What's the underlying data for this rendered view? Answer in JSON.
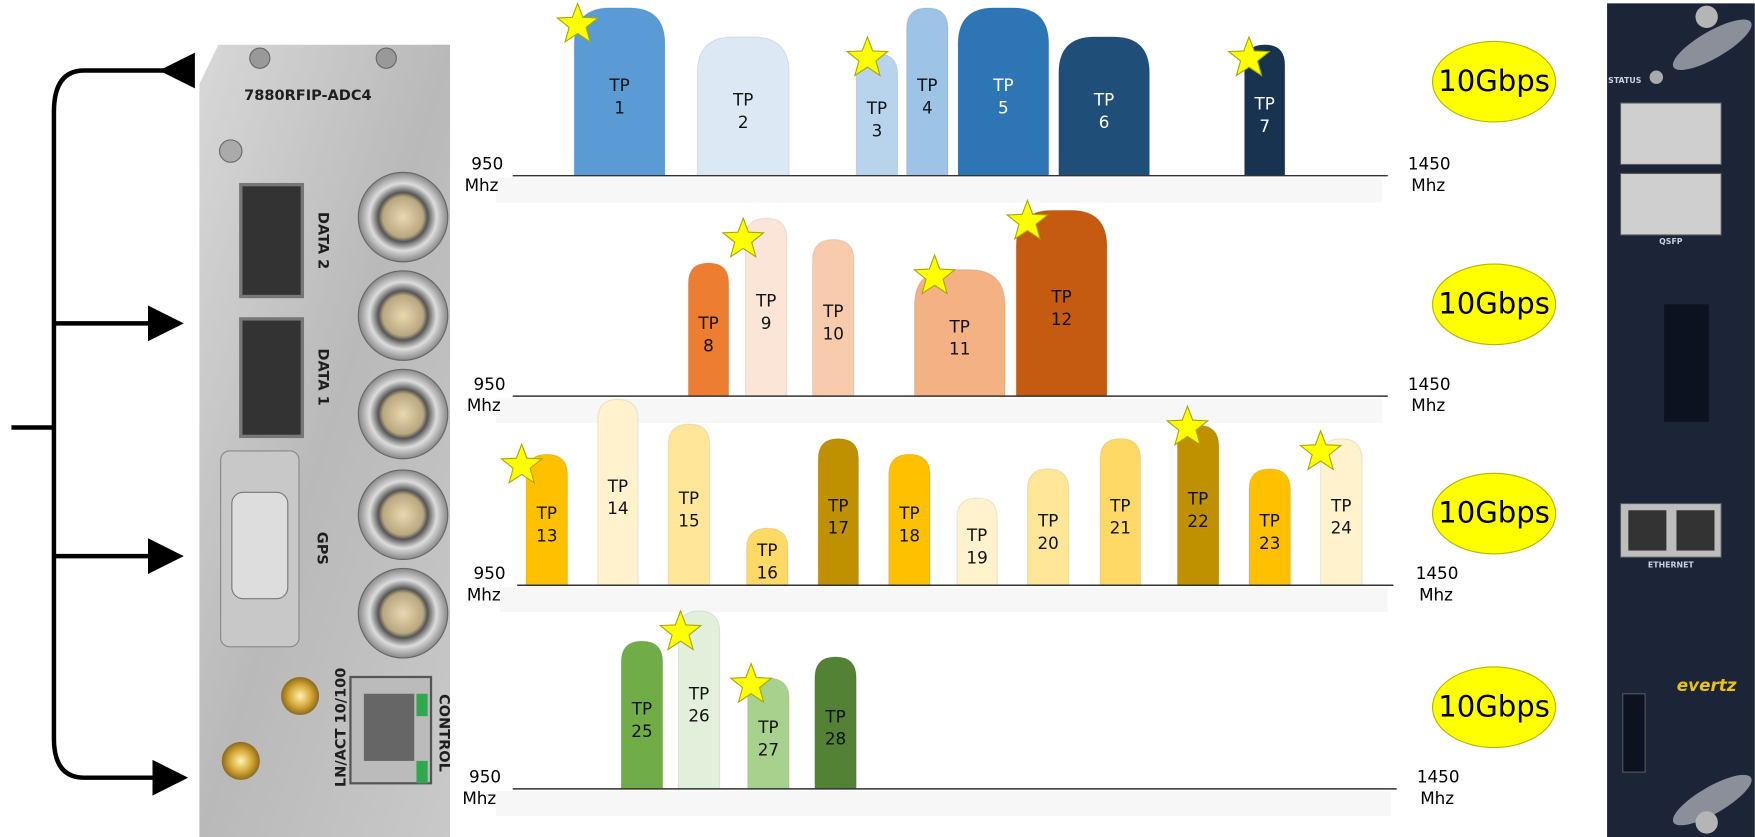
{
  "device": {
    "model": "7880RFIP-ADC4",
    "ports": [
      "DATA 2",
      "DATA 1",
      "GPS",
      "LN/ACT 10/100",
      "CONTROL"
    ]
  },
  "rows": [
    {
      "start": "950",
      "end": "1450",
      "unit": "Mhz",
      "rate": "10Gbps",
      "transponders": [
        {
          "name": "TP",
          "id": "1"
        },
        {
          "name": "TP",
          "id": "2"
        },
        {
          "name": "TP",
          "id": "3"
        },
        {
          "name": "TP",
          "id": "4"
        },
        {
          "name": "TP",
          "id": "5"
        },
        {
          "name": "TP",
          "id": "6"
        },
        {
          "name": "TP",
          "id": "7"
        }
      ]
    },
    {
      "start": "950",
      "end": "1450",
      "unit": "Mhz",
      "rate": "10Gbps",
      "transponders": [
        {
          "name": "TP",
          "id": "8"
        },
        {
          "name": "TP",
          "id": "9"
        },
        {
          "name": "TP",
          "id": "10"
        },
        {
          "name": "TP",
          "id": "11"
        },
        {
          "name": "TP",
          "id": "12"
        }
      ]
    },
    {
      "start": "950",
      "end": "1450",
      "unit": "Mhz",
      "rate": "10Gbps",
      "transponders": [
        {
          "name": "TP",
          "id": "13"
        },
        {
          "name": "TP",
          "id": "14"
        },
        {
          "name": "TP",
          "id": "15"
        },
        {
          "name": "TP",
          "id": "16"
        },
        {
          "name": "TP",
          "id": "17"
        },
        {
          "name": "TP",
          "id": "18"
        },
        {
          "name": "TP",
          "id": "19"
        },
        {
          "name": "TP",
          "id": "20"
        },
        {
          "name": "TP",
          "id": "21"
        },
        {
          "name": "TP",
          "id": "22"
        },
        {
          "name": "TP",
          "id": "23"
        },
        {
          "name": "TP",
          "id": "24"
        }
      ]
    },
    {
      "start": "950",
      "end": "1450",
      "unit": "Mhz",
      "rate": "10Gbps",
      "transponders": [
        {
          "name": "TP",
          "id": "25"
        },
        {
          "name": "TP",
          "id": "26"
        },
        {
          "name": "TP",
          "id": "27"
        },
        {
          "name": "TP",
          "id": "28"
        }
      ]
    }
  ],
  "card": {
    "labels": [
      "STATUS",
      "QSFP",
      "ETHERNET"
    ],
    "brand": "evertz"
  }
}
